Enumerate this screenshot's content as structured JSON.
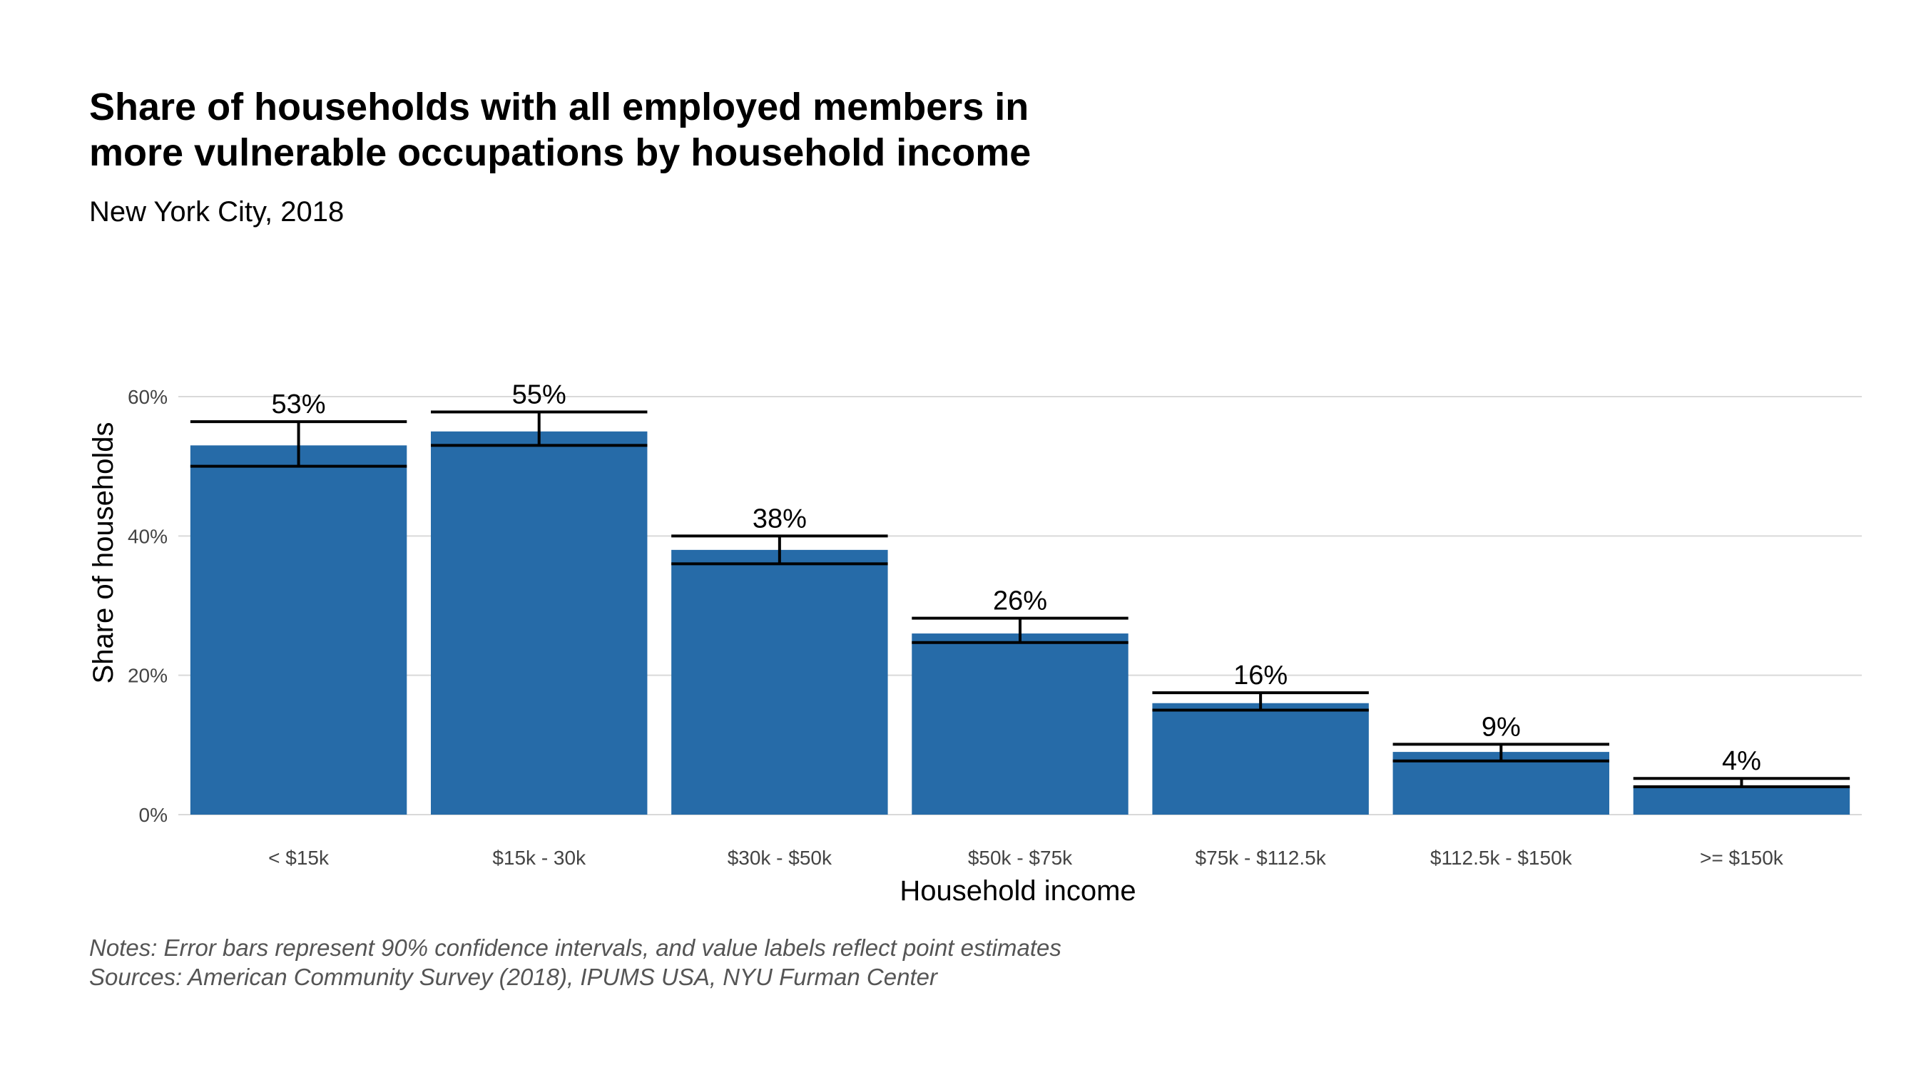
{
  "title_line1": "Share of households with all employed members in",
  "title_line2": "more vulnerable occupations by household income",
  "subtitle": "New York City, 2018",
  "notes_line1": "Notes: Error bars represent 90% confidence intervals, and value labels reflect point estimates",
  "notes_line2": "Sources: American Community Survey (2018), IPUMS USA, NYU Furman Center",
  "colors": {
    "bar": "#266ba8",
    "grid": "#d9d9d9",
    "error": "#000000"
  },
  "chart_data": {
    "type": "bar",
    "title": "Share of households with all employed members in more vulnerable occupations by household income",
    "subtitle": "New York City, 2018",
    "xlabel": "Household income",
    "ylabel": "Share of households",
    "ylim": [
      0,
      60
    ],
    "yticks": [
      0,
      20,
      40,
      60
    ],
    "ytick_labels": [
      "0%",
      "20%",
      "40%",
      "60%"
    ],
    "grid": true,
    "categories": [
      "< $15k",
      "$15k - 30k",
      "$30k - $50k",
      "$50k - $75k",
      "$75k - $112.5k",
      "$112.5k - $150k",
      ">= $150k"
    ],
    "values": [
      53,
      55,
      38,
      26,
      16,
      9,
      4
    ],
    "value_labels": [
      "53%",
      "55%",
      "38%",
      "26%",
      "16%",
      "9%",
      "4%"
    ],
    "error_low": [
      50,
      53,
      36,
      24.7,
      15,
      7.7,
      4
    ],
    "error_high": [
      56.4,
      57.8,
      40,
      28.2,
      17.5,
      10.1,
      5.2
    ]
  }
}
